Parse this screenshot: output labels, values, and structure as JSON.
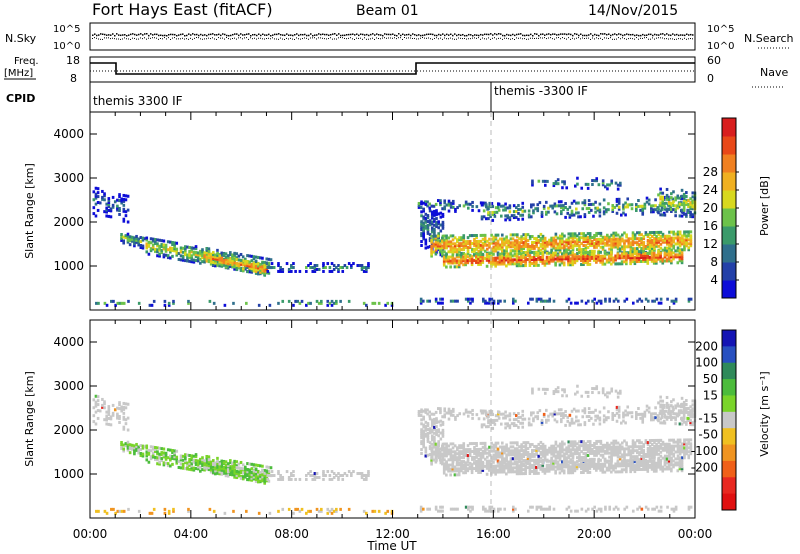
{
  "header": {
    "station": "Fort Hays East (fitACF)",
    "beam": "Beam 01",
    "date": "14/Nov/2015"
  },
  "top_strip": {
    "left_label": "N.Sky",
    "left_ticks": [
      "10^5",
      "10^0"
    ],
    "right_ticks": [
      "10^5",
      "10^0"
    ],
    "right_label": "N.Search"
  },
  "freq_strip": {
    "left_label_line1": "Freq.",
    "left_label_line2": "[MHz]",
    "left_ticks": [
      "18",
      "8"
    ],
    "right_ticks": [
      "60",
      "0"
    ],
    "right_label": "Nave"
  },
  "cpid": {
    "label": "CPID",
    "mode1": "themis 3300 IF",
    "mode2": "themis -3300 IF"
  },
  "colors": {
    "frame": "#000000",
    "ground_scatter": "#c8c8c8",
    "dashed_marker": "#bbbbbb"
  },
  "chart_data": [
    {
      "type": "heatmap",
      "title": "",
      "xlabel": "",
      "ylabel": "Slant Range [km]",
      "x_range_hours": [
        0,
        24
      ],
      "y_range_km": [
        0,
        4500
      ],
      "yticks": [
        1000,
        2000,
        3000,
        4000
      ],
      "colorbar": {
        "label": "Power [dB]",
        "ticks": [
          4,
          8,
          12,
          16,
          20,
          24,
          28
        ],
        "colors": [
          "#0d0dd8",
          "#2340a8",
          "#2f6f8c",
          "#3a9a6a",
          "#6cc24a",
          "#d8d81e",
          "#f0b020",
          "#f08020",
          "#e84818",
          "#d81e1e"
        ]
      }
    },
    {
      "type": "heatmap",
      "title": "",
      "xlabel": "Time UT",
      "ylabel": "Slant Range [km]",
      "x_range_hours": [
        0,
        24
      ],
      "y_range_km": [
        0,
        4500
      ],
      "yticks": [
        1000,
        2000,
        3000,
        4000
      ],
      "xticks": [
        "00:00",
        "04:00",
        "08:00",
        "12:00",
        "16:00",
        "20:00",
        "00:00"
      ],
      "colorbar": {
        "label": "Velocity [m s⁻¹]",
        "ticks": [
          200,
          100,
          50,
          15,
          -15,
          -50,
          -100,
          -200
        ],
        "colors": [
          "#1414b4",
          "#2850c0",
          "#2f8a5a",
          "#4cbc3c",
          "#7ad42a",
          "#c8c8c8",
          "#f0c020",
          "#f09420",
          "#f06018",
          "#e82820",
          "#e01010"
        ]
      }
    }
  ]
}
